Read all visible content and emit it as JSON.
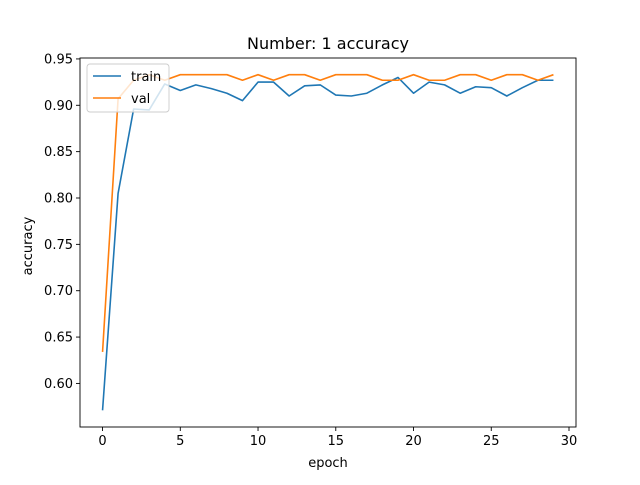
{
  "chart_data": {
    "type": "line",
    "title": "Number: 1 accuracy",
    "xlabel": "epoch",
    "ylabel": "accuracy",
    "xlim": [
      -1.45,
      30.45
    ],
    "ylim": [
      0.553,
      0.951
    ],
    "xticks": [
      0,
      5,
      10,
      15,
      20,
      25,
      30
    ],
    "yticks": [
      0.6,
      0.65,
      0.7,
      0.75,
      0.8,
      0.85,
      0.9,
      0.95
    ],
    "grid": false,
    "legend": "upper left",
    "x": [
      0,
      1,
      2,
      3,
      4,
      5,
      6,
      7,
      8,
      9,
      10,
      11,
      12,
      13,
      14,
      15,
      16,
      17,
      18,
      19,
      20,
      21,
      22,
      23,
      24,
      25,
      26,
      27,
      28,
      29
    ],
    "series": [
      {
        "name": "train",
        "color": "#1f77b4",
        "values": [
          0.571,
          0.805,
          0.896,
          0.895,
          0.923,
          0.916,
          0.922,
          0.918,
          0.913,
          0.905,
          0.925,
          0.925,
          0.91,
          0.921,
          0.922,
          0.911,
          0.91,
          0.913,
          0.922,
          0.93,
          0.913,
          0.925,
          0.922,
          0.913,
          0.92,
          0.919,
          0.91,
          0.919,
          0.927,
          0.927
        ]
      },
      {
        "name": "val",
        "color": "#ff7f0e",
        "values": [
          0.634,
          0.907,
          0.927,
          0.933,
          0.927,
          0.933,
          0.933,
          0.933,
          0.933,
          0.927,
          0.933,
          0.927,
          0.933,
          0.933,
          0.927,
          0.933,
          0.933,
          0.933,
          0.927,
          0.927,
          0.933,
          0.927,
          0.927,
          0.933,
          0.933,
          0.927,
          0.933,
          0.933,
          0.927,
          0.933
        ]
      }
    ]
  }
}
